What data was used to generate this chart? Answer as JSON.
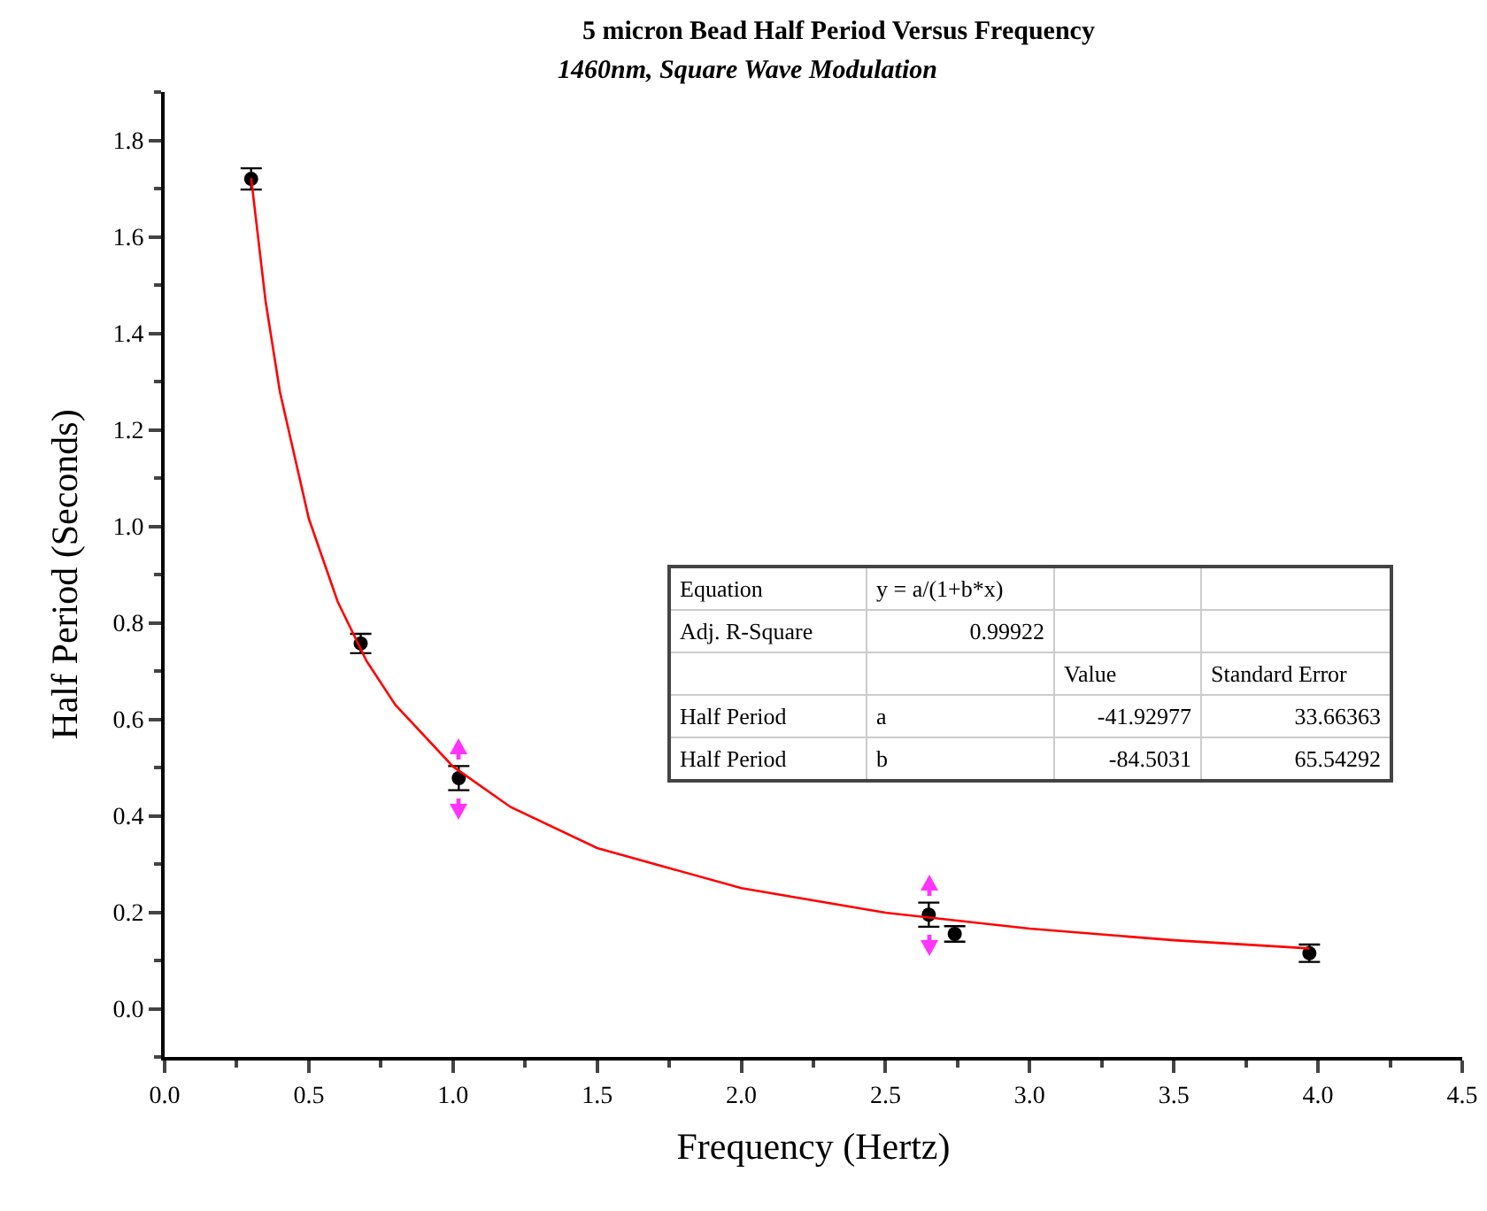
{
  "chart_data": {
    "type": "scatter",
    "title": "5 micron Bead Half Period Versus Frequency",
    "subtitle": "1460nm, Square Wave Modulation",
    "xlabel": "Frequency (Hertz)",
    "ylabel": "Half Period (Seconds)",
    "x": [
      0.3,
      0.68,
      1.02,
      2.65,
      2.74,
      3.97
    ],
    "series": [
      {
        "color": "#000000",
        "marker": "circle",
        "values": [
          1.72,
          0.757,
          0.478,
          0.195,
          0.155,
          0.115
        ],
        "errors": [
          0.022,
          0.02,
          0.025,
          0.025,
          0.016,
          0.018
        ]
      },
      {
        "type": "line",
        "color": "#ff0000",
        "marker": "none",
        "line_style": "solid",
        "x": [
          0.3,
          0.35,
          0.4,
          0.5,
          0.6,
          0.7,
          0.8,
          1.0,
          1.2,
          1.5,
          2.0,
          2.5,
          3.0,
          3.5,
          3.97
        ],
        "values": [
          1.722,
          1.467,
          1.278,
          1.016,
          0.844,
          0.721,
          0.63,
          0.502,
          0.418,
          0.333,
          0.25,
          0.199,
          0.166,
          0.142,
          0.125
        ]
      }
    ],
    "xlim": [
      0,
      4.5
    ],
    "xticks": [
      {
        "value": 0,
        "label": "0.0"
      },
      0.5,
      {
        "value": 1,
        "label": "1.0"
      },
      1.5,
      {
        "value": 2,
        "label": "2.0"
      },
      2.5,
      {
        "value": 3,
        "label": "3.0"
      },
      3.5,
      {
        "value": 4,
        "label": "4.0"
      },
      4.5
    ],
    "ylim": [
      -0.1,
      1.9
    ],
    "yticks": [
      {
        "value": 0,
        "label": "0.0"
      },
      0.2,
      0.4,
      0.6,
      0.8,
      {
        "value": 1,
        "label": "1.0"
      },
      1.2,
      1.4,
      1.6,
      1.8
    ],
    "grid": false,
    "annotations": [
      "Equation",
      "y = a/(1+b*x)",
      "Adj. R-Square",
      "0.99922",
      "Value",
      "Standard Error",
      "Half Period",
      "a",
      "-41.92977",
      "33.66363",
      "Half Period",
      "b",
      "-84.5031",
      "65.54292"
    ]
  }
}
